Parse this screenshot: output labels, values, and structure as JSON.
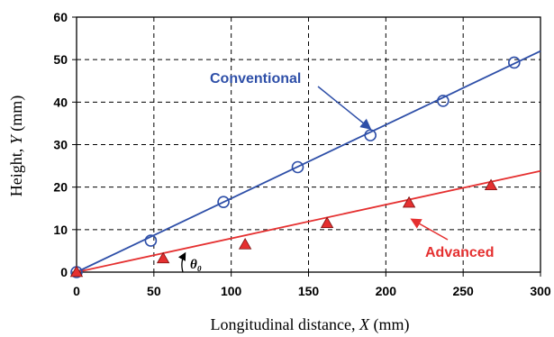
{
  "chart_data": {
    "type": "scatter",
    "xlabel": {
      "prefix": "Longitudinal distance, ",
      "var": "X",
      "suffix": " (mm)"
    },
    "ylabel": {
      "prefix": "Height, ",
      "var": "Y",
      "suffix": " (mm)"
    },
    "xlim": [
      0,
      300
    ],
    "ylim": [
      0,
      60
    ],
    "x_ticks": [
      "0",
      "50",
      "100",
      "150",
      "200",
      "250",
      "300"
    ],
    "y_ticks": [
      "0",
      "10",
      "20",
      "30",
      "40",
      "50",
      "60"
    ],
    "grid": true,
    "series": [
      {
        "name": "Conventional",
        "marker": "open-circle",
        "color": "#2E4FA8",
        "fit_line": {
          "x": [
            0,
            300
          ],
          "y": [
            0,
            52
          ]
        },
        "points": [
          {
            "x": 0,
            "y": 0
          },
          {
            "x": 48,
            "y": 7.4
          },
          {
            "x": 95,
            "y": 16.5
          },
          {
            "x": 143,
            "y": 24.7
          },
          {
            "x": 190,
            "y": 32.2
          },
          {
            "x": 237,
            "y": 40.3
          },
          {
            "x": 283,
            "y": 49.3
          }
        ]
      },
      {
        "name": "Advanced",
        "marker": "filled-triangle",
        "color": "#E53030",
        "fit_line": {
          "x": [
            0,
            300
          ],
          "y": [
            0,
            23.8
          ]
        },
        "points": [
          {
            "x": 0,
            "y": 0
          },
          {
            "x": 56,
            "y": 3.2
          },
          {
            "x": 109,
            "y": 6.5
          },
          {
            "x": 162,
            "y": 11.5
          },
          {
            "x": 215,
            "y": 16.3
          },
          {
            "x": 268,
            "y": 20.4
          }
        ]
      }
    ],
    "annotations": [
      {
        "text": "θ₀",
        "meaning": "inclination angle of Advanced line"
      }
    ]
  }
}
